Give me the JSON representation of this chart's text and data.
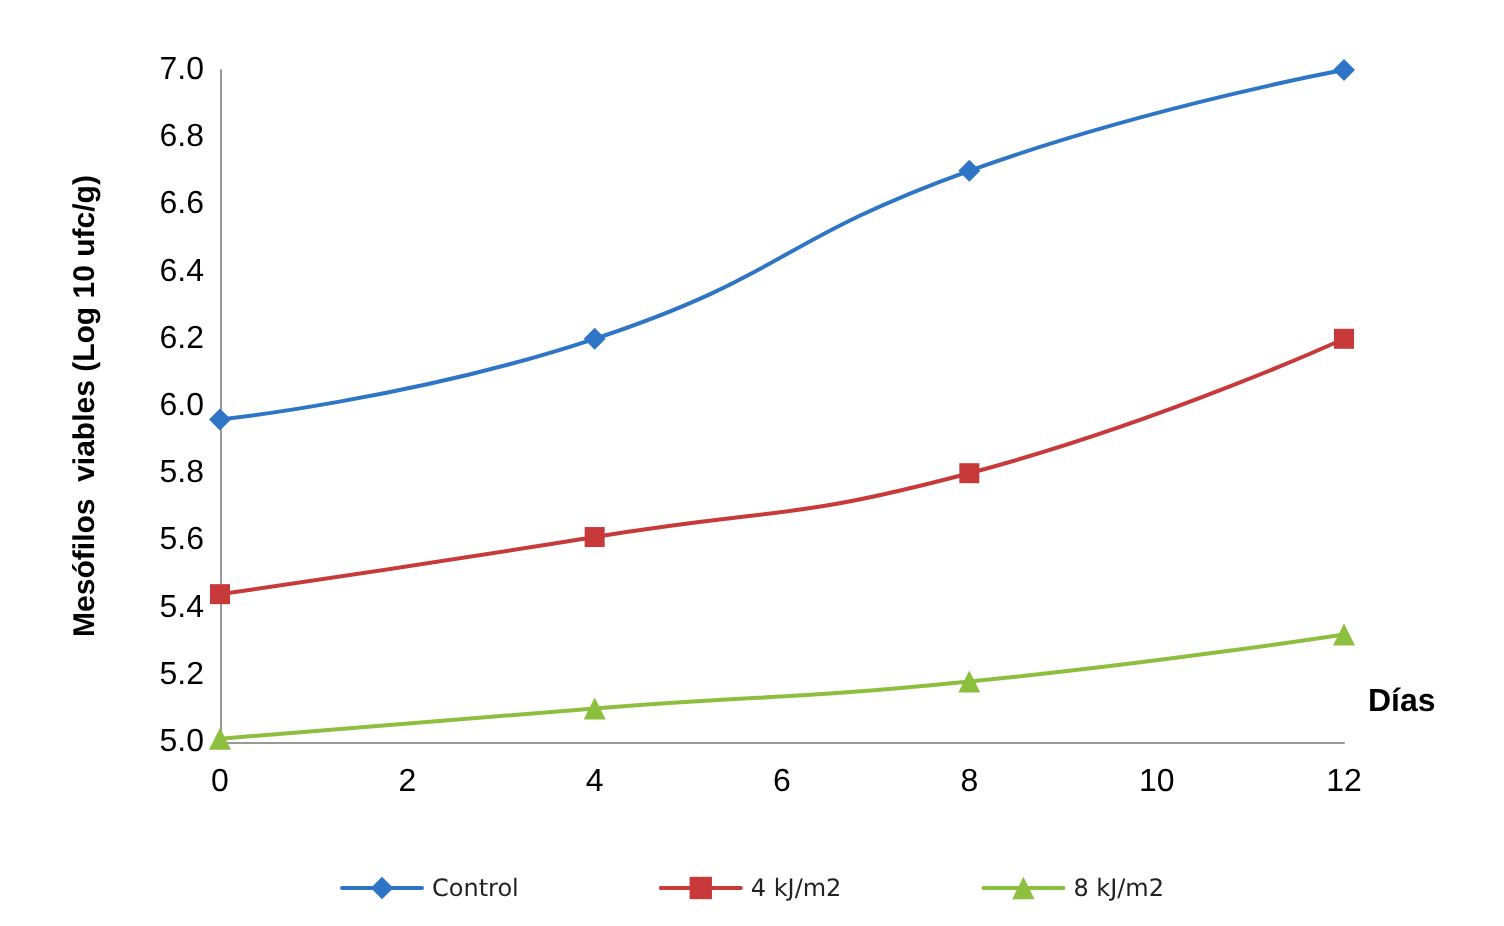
{
  "chart_data": {
    "type": "line",
    "xlabel": "Días",
    "ylabel": "Mesófilos  viables (Log 10 ufc/g)",
    "x": [
      0,
      4,
      8,
      12
    ],
    "series": [
      {
        "name": "Control",
        "color": "#2e75c6",
        "marker": "diamond",
        "values": [
          5.96,
          6.2,
          6.7,
          7.0
        ]
      },
      {
        "name": "4 kJ/m2",
        "color": "#c8393a",
        "marker": "square",
        "values": [
          5.44,
          5.61,
          5.8,
          6.2
        ]
      },
      {
        "name": "8 kJ/m2",
        "color": "#8dbf3f",
        "marker": "triangle",
        "values": [
          5.01,
          5.1,
          5.18,
          5.32
        ]
      }
    ],
    "xlim": [
      0,
      12
    ],
    "xticks": [
      0,
      2,
      4,
      6,
      8,
      10,
      12
    ],
    "ylim": [
      5,
      7
    ],
    "yticks": [
      {
        "value": 5,
        "label": "5.0"
      },
      {
        "value": 5.2,
        "label": "5.2"
      },
      {
        "value": 5.4,
        "label": "5.4"
      },
      {
        "value": 5.6,
        "label": "5.6"
      },
      {
        "value": 5.8,
        "label": "5.8"
      },
      {
        "value": 6,
        "label": "6.0"
      },
      {
        "value": 6.2,
        "label": "6.2"
      },
      {
        "value": 6.4,
        "label": "6.4"
      },
      {
        "value": 6.6,
        "label": "6.6"
      },
      {
        "value": 6.8,
        "label": "6.8"
      },
      {
        "value": 7,
        "label": "7.0"
      }
    ],
    "grid": false,
    "legend": "bottom",
    "line_style": "solid"
  }
}
